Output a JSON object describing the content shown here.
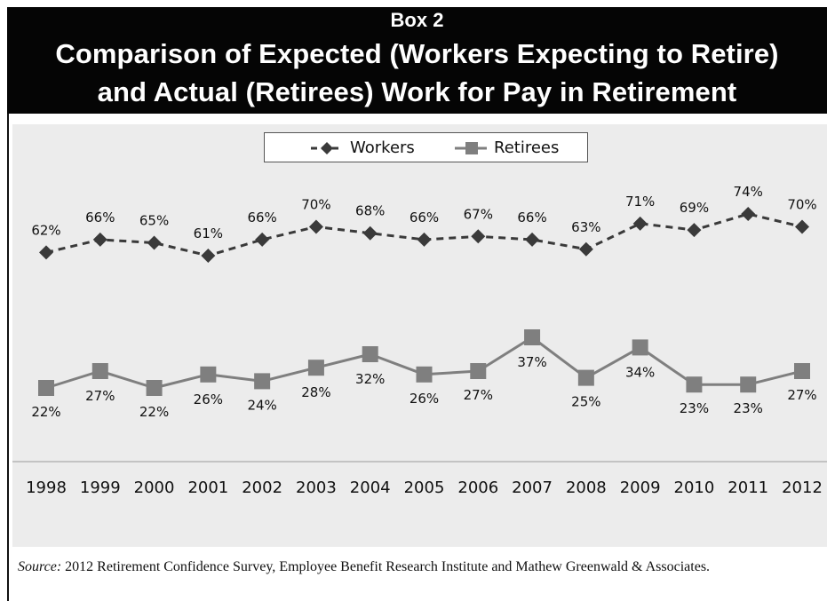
{
  "header": {
    "box_label": "Box 2",
    "title_line_1": "Comparison of Expected (Workers Expecting to Retire)",
    "title_line_2": "and Actual (Retirees) Work for Pay in Retirement"
  },
  "chart_data": {
    "type": "line",
    "title": "Comparison of Expected (Workers Expecting to Retire) and Actual (Retirees) Work for Pay in Retirement",
    "x": [
      "1998",
      "1999",
      "2000",
      "2001",
      "2002",
      "2003",
      "2004",
      "2005",
      "2006",
      "2007",
      "2008",
      "2009",
      "2010",
      "2011",
      "2012"
    ],
    "series": [
      {
        "name": "Workers",
        "values": [
          62,
          66,
          65,
          61,
          66,
          70,
          68,
          66,
          67,
          66,
          63,
          71,
          69,
          74,
          70
        ],
        "labels": [
          "62%",
          "66%",
          "65%",
          "61%",
          "66%",
          "70%",
          "68%",
          "66%",
          "67%",
          "66%",
          "63%",
          "71%",
          "69%",
          "74%",
          "70%"
        ],
        "color": "#3a3a3a",
        "line_style": "dashed",
        "marker": "diamond"
      },
      {
        "name": "Retirees",
        "values": [
          22,
          27,
          22,
          26,
          24,
          28,
          32,
          26,
          27,
          37,
          25,
          34,
          23,
          23,
          27
        ],
        "labels": [
          "22%",
          "27%",
          "22%",
          "26%",
          "24%",
          "28%",
          "32%",
          "26%",
          "27%",
          "37%",
          "25%",
          "34%",
          "23%",
          "23%",
          "27%"
        ],
        "color": "#7f7f7f",
        "line_style": "solid",
        "marker": "square"
      }
    ],
    "xlabel": "",
    "ylabel": "",
    "ylim": [
      0,
      100
    ],
    "grid": false,
    "legend_position": "top-center",
    "background": "#ececec"
  },
  "legend": {
    "workers": "Workers",
    "retirees": "Retirees"
  },
  "source": {
    "label": "Source:",
    "text": "2012 Retirement Confidence Survey, Employee Benefit Research Institute and Mathew Greenwald & Associates."
  }
}
